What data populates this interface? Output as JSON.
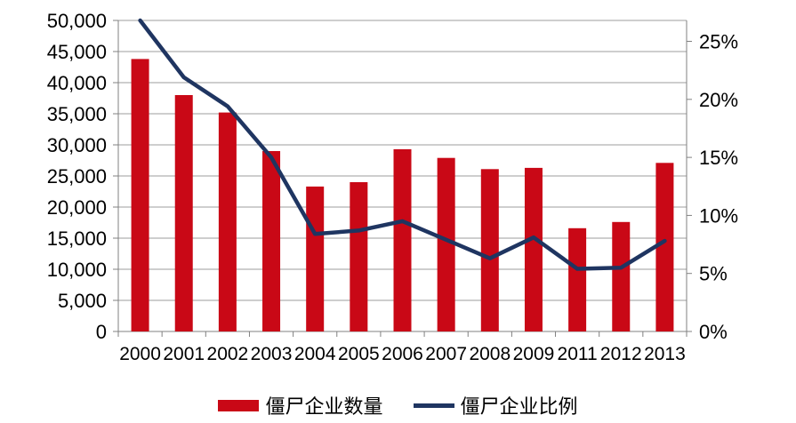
{
  "chart_data": {
    "type": "bar",
    "combo": "bar+line",
    "title": "",
    "categories": [
      "2000",
      "2001",
      "2002",
      "2003",
      "2004",
      "2005",
      "2006",
      "2007",
      "2008",
      "2009",
      "2011",
      "2012",
      "2013"
    ],
    "series": [
      {
        "name": "僵尸企业数量",
        "type": "bar",
        "axis": "left",
        "color": "#C90816",
        "values": [
          43800,
          38000,
          35200,
          29000,
          23300,
          24000,
          29300,
          27900,
          26100,
          26300,
          16600,
          17600,
          27100
        ]
      },
      {
        "name": "僵尸企业比例",
        "type": "line",
        "axis": "right",
        "color": "#1F3561",
        "values_percent": [
          26.8,
          21.9,
          19.4,
          15.0,
          8.4,
          8.7,
          9.5,
          7.9,
          6.3,
          8.1,
          5.4,
          5.5,
          7.8
        ]
      }
    ],
    "left_axis": {
      "min": 0,
      "max": 50000,
      "tick_step": 5000,
      "tick_labels": [
        "0",
        "5,000",
        "10,000",
        "15,000",
        "20,000",
        "25,000",
        "30,000",
        "35,000",
        "40,000",
        "45,000",
        "50,000"
      ]
    },
    "right_axis": {
      "min": 0,
      "plot_top_value": 26.8,
      "tick_values": [
        0,
        5,
        10,
        15,
        20,
        25
      ],
      "tick_labels": [
        "0%",
        "5%",
        "10%",
        "15%",
        "20%",
        "25%"
      ]
    },
    "grid": "horizontal",
    "legend_position": "bottom",
    "colors": {
      "grid_line": "#9C9C9C",
      "axis_line": "#808080",
      "text": "#000000",
      "background": "#FFFFFF"
    }
  },
  "legend": {
    "bar_label": "僵尸企业数量",
    "line_label": "僵尸企业比例"
  }
}
